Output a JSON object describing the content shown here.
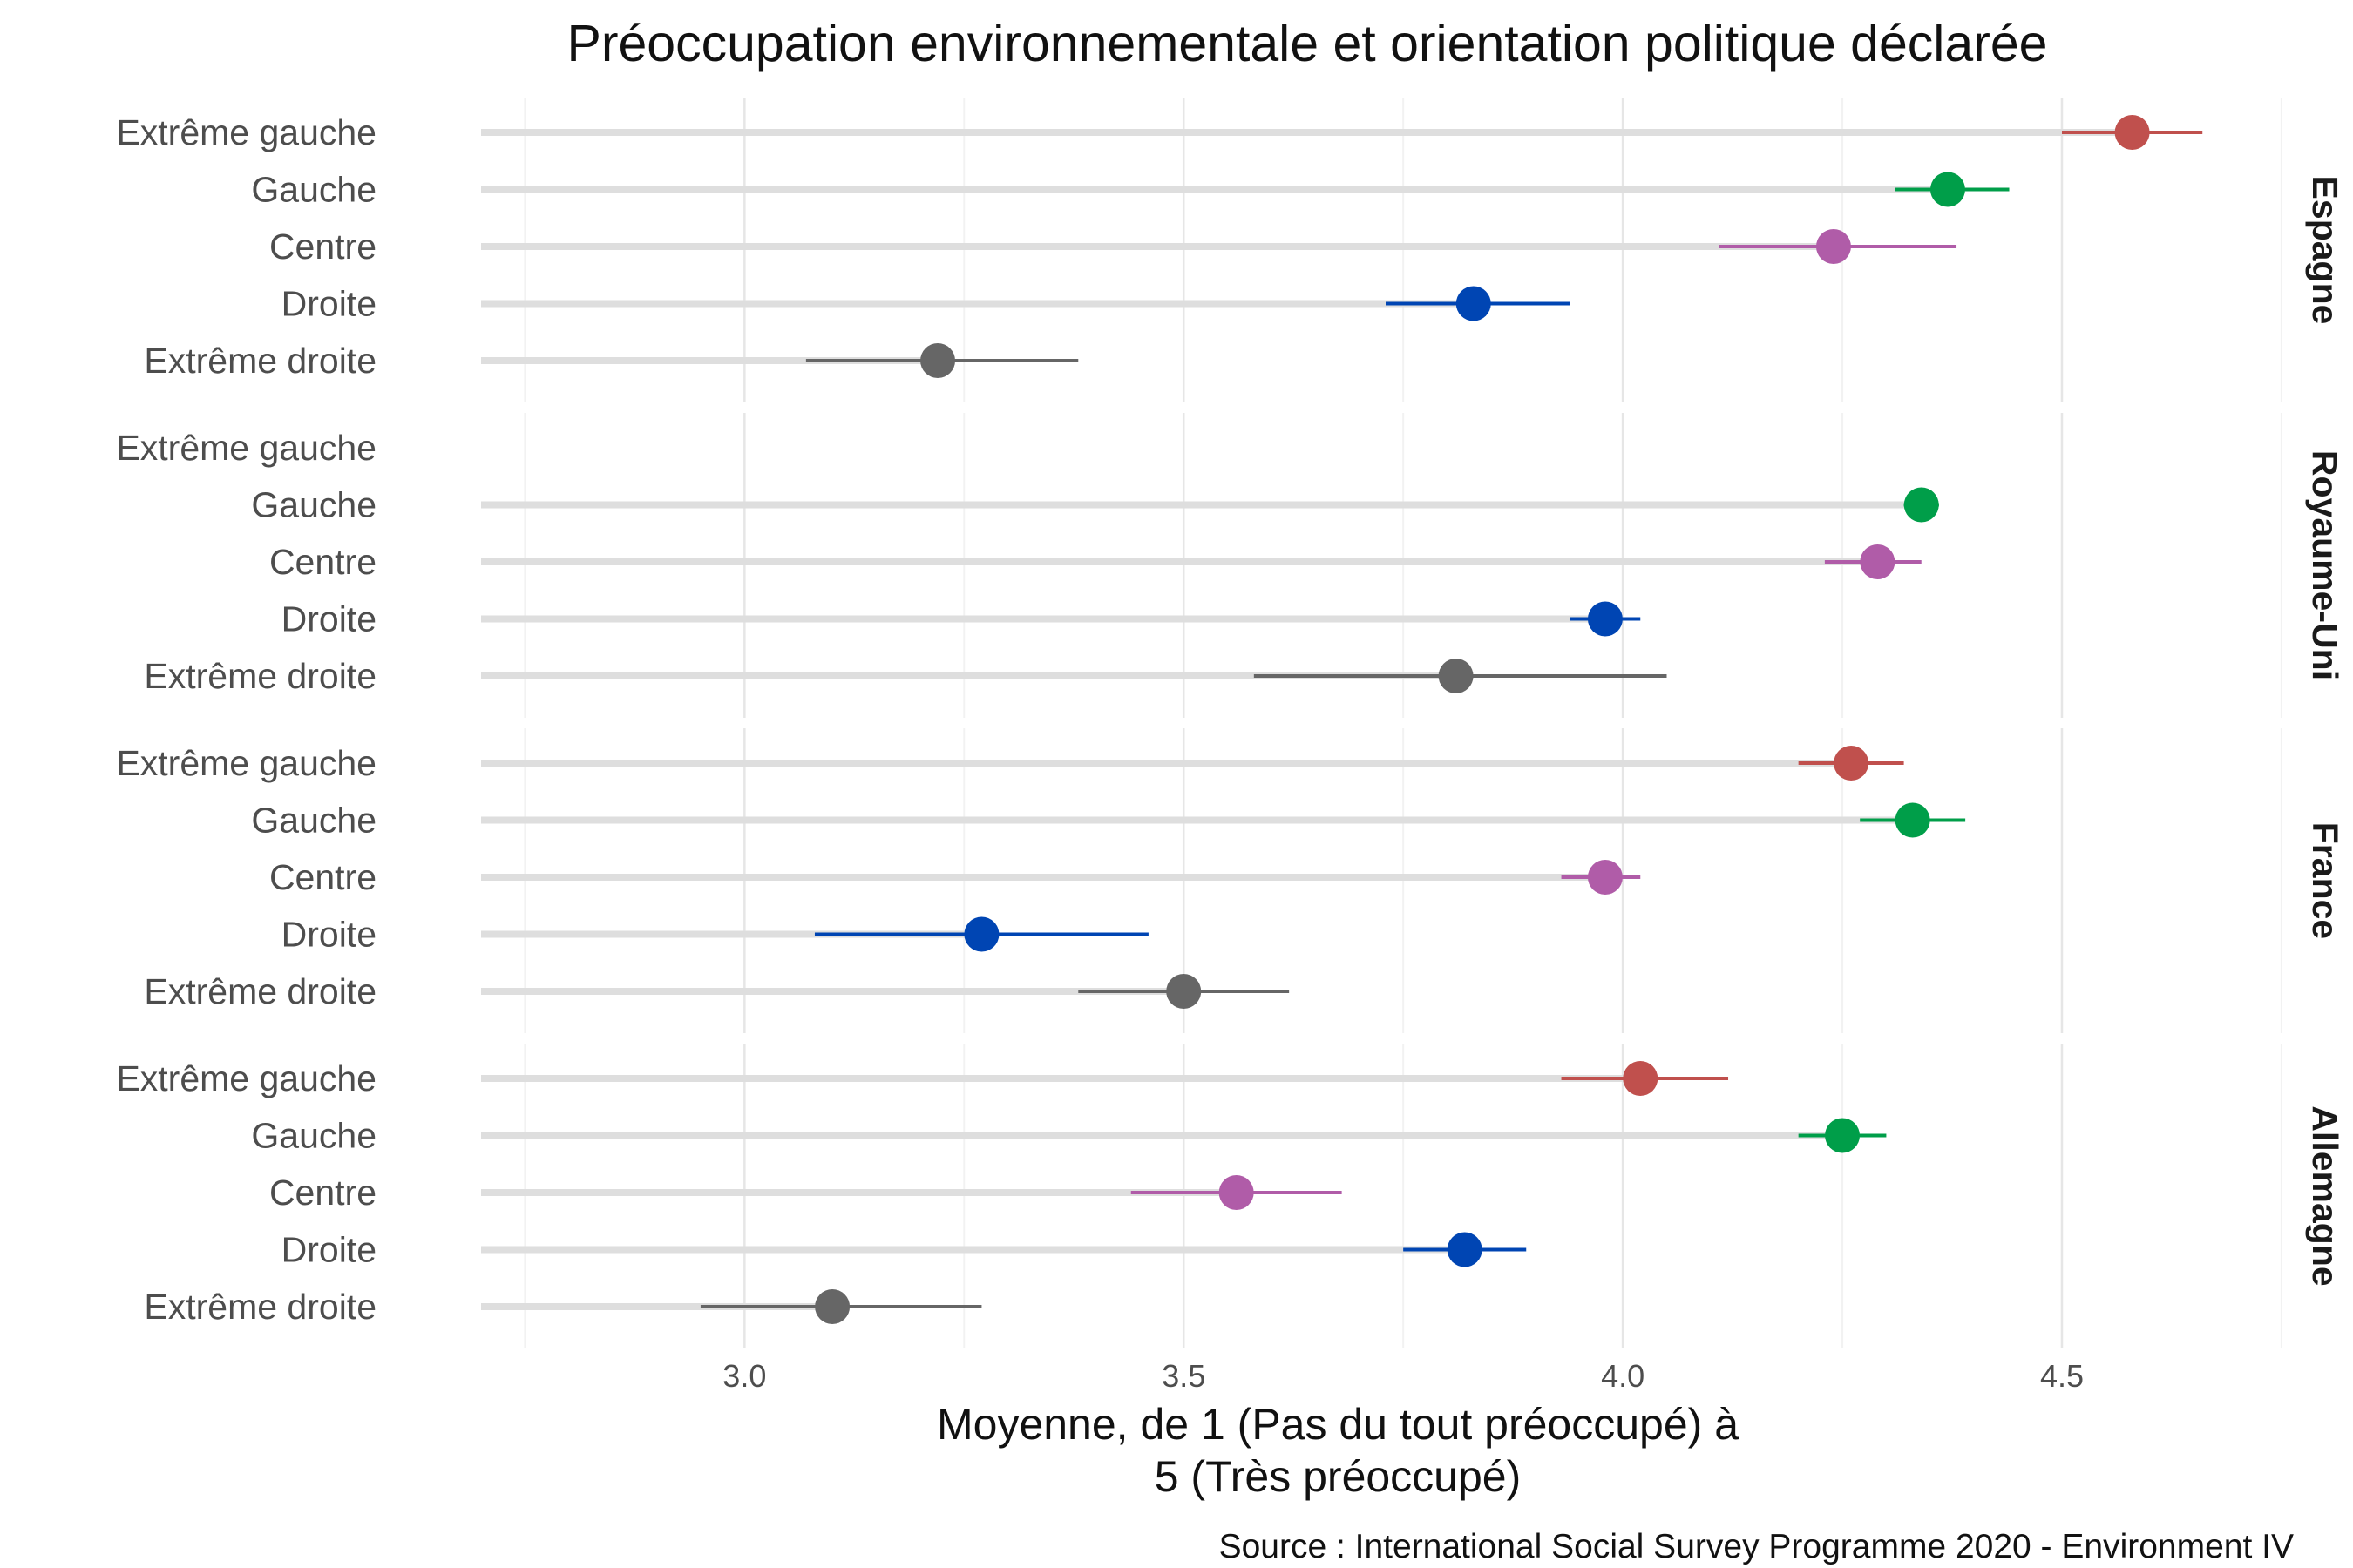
{
  "chart_data": {
    "type": "dot-interval",
    "title": "Préoccupation environnementale et orientation politique déclarée",
    "xlabel_lines": [
      "Moyenne, de 1 (Pas du tout préoccupé) à",
      "5 (Très préoccupé)"
    ],
    "caption": "Source : International Social Survey Programme 2020 - Environment IV",
    "xlim": [
      2.7,
      4.76
    ],
    "xticks": [
      3.0,
      3.5,
      4.0,
      4.5
    ],
    "xtick_labels": [
      "3.0",
      "3.5",
      "4.0",
      "4.5"
    ],
    "categories": [
      "Extrême gauche",
      "Gauche",
      "Centre",
      "Droite",
      "Extrême droite"
    ],
    "colors": {
      "Extrême gauche": "#c0504d",
      "Gauche": "#009e49",
      "Centre": "#b05ca8",
      "Droite": "#0045b3",
      "Extrême droite": "#666666"
    },
    "grid": true,
    "facets": [
      {
        "name": "Espagne",
        "points": [
          {
            "category": "Extrême gauche",
            "mean": 4.58,
            "low": 4.5,
            "high": 4.66
          },
          {
            "category": "Gauche",
            "mean": 4.37,
            "low": 4.31,
            "high": 4.44
          },
          {
            "category": "Centre",
            "mean": 4.24,
            "low": 4.11,
            "high": 4.38
          },
          {
            "category": "Droite",
            "mean": 3.83,
            "low": 3.73,
            "high": 3.94
          },
          {
            "category": "Extrême droite",
            "mean": 3.22,
            "low": 3.07,
            "high": 3.38
          }
        ]
      },
      {
        "name": "Royaume-Uni",
        "points": [
          {
            "category": "Gauche",
            "mean": 4.34,
            "low": 4.32,
            "high": 4.36
          },
          {
            "category": "Centre",
            "mean": 4.29,
            "low": 4.23,
            "high": 4.34
          },
          {
            "category": "Droite",
            "mean": 3.98,
            "low": 3.94,
            "high": 4.02
          },
          {
            "category": "Extrême droite",
            "mean": 3.81,
            "low": 3.58,
            "high": 4.05
          }
        ]
      },
      {
        "name": "France",
        "points": [
          {
            "category": "Extrême gauche",
            "mean": 4.26,
            "low": 4.2,
            "high": 4.32
          },
          {
            "category": "Gauche",
            "mean": 4.33,
            "low": 4.27,
            "high": 4.39
          },
          {
            "category": "Centre",
            "mean": 3.98,
            "low": 3.93,
            "high": 4.02
          },
          {
            "category": "Droite",
            "mean": 3.27,
            "low": 3.08,
            "high": 3.46
          },
          {
            "category": "Extrême droite",
            "mean": 3.5,
            "low": 3.38,
            "high": 3.62
          }
        ]
      },
      {
        "name": "Allemagne",
        "points": [
          {
            "category": "Extrême gauche",
            "mean": 4.02,
            "low": 3.93,
            "high": 4.12
          },
          {
            "category": "Gauche",
            "mean": 4.25,
            "low": 4.2,
            "high": 4.3
          },
          {
            "category": "Centre",
            "mean": 3.56,
            "low": 3.44,
            "high": 3.68
          },
          {
            "category": "Droite",
            "mean": 3.82,
            "low": 3.75,
            "high": 3.89
          },
          {
            "category": "Extrême droite",
            "mean": 3.1,
            "low": 2.95,
            "high": 3.27
          }
        ]
      }
    ]
  }
}
